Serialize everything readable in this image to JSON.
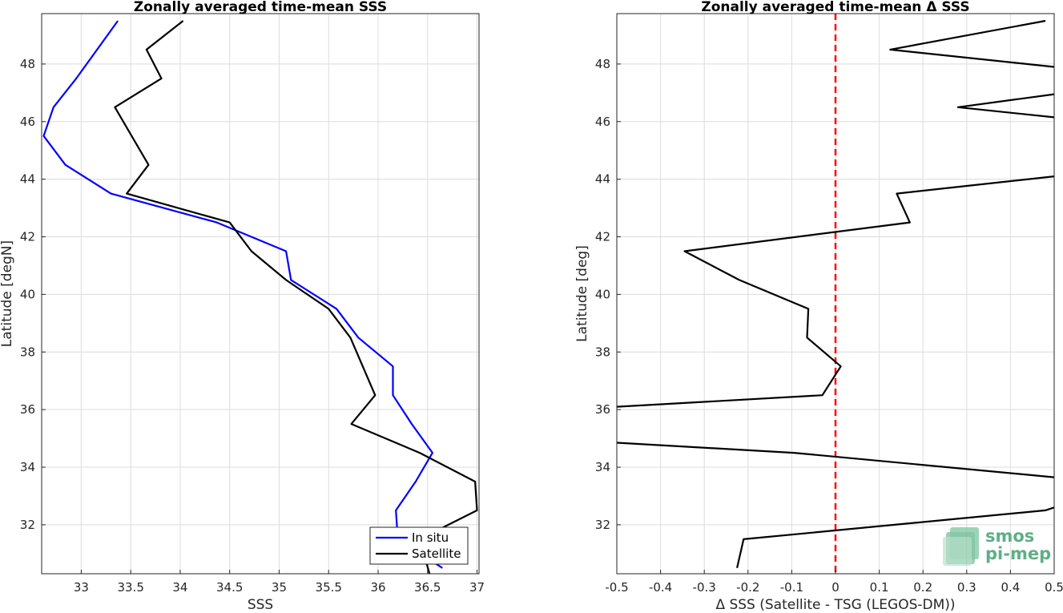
{
  "chart_data": [
    {
      "type": "line",
      "title": "Zonally averaged time-mean SSS",
      "xlabel": "SSS",
      "ylabel": "Latitude [degN]",
      "xlim": [
        32.6,
        37.02
      ],
      "ylim": [
        30.3,
        49.75
      ],
      "xticks": [
        33,
        33.5,
        34,
        34.5,
        35,
        35.5,
        36,
        36.5,
        37
      ],
      "xtick_labels": [
        "33",
        "33.5",
        "34",
        "34.5",
        "35",
        "35.5",
        "36",
        "36.5",
        "37"
      ],
      "yticks": [
        32,
        34,
        36,
        38,
        40,
        42,
        44,
        46,
        48
      ],
      "ytick_labels": [
        "32",
        "34",
        "36",
        "38",
        "40",
        "42",
        "44",
        "46",
        "48"
      ],
      "grid": true,
      "legend_position": "bottom-right",
      "series": [
        {
          "name": "In situ",
          "color": "#0000ff",
          "x": [
            36.65,
            36.2,
            36.18,
            36.38,
            36.55,
            36.34,
            36.15,
            36.15,
            35.8,
            35.58,
            35.12,
            35.07,
            34.37,
            33.3,
            32.84,
            32.62,
            32.72,
            32.95,
            33.37
          ],
          "y": [
            30.5,
            31.5,
            32.5,
            33.5,
            34.5,
            35.5,
            36.5,
            37.5,
            38.5,
            39.5,
            40.5,
            41.5,
            42.5,
            43.5,
            44.5,
            45.5,
            46.5,
            47.5,
            49.5
          ]
        },
        {
          "name": "Satellite",
          "color": "#000000",
          "x": [
            36.52,
            36.42,
            37.0,
            36.98,
            36.42,
            35.73,
            35.97,
            35.72,
            35.5,
            35.07,
            34.72,
            34.5,
            33.46,
            33.68,
            33.34,
            33.81,
            33.66,
            34.03
          ],
          "y": [
            30.3,
            31.5,
            32.5,
            33.5,
            34.5,
            35.5,
            36.5,
            38.5,
            39.5,
            40.5,
            41.5,
            42.5,
            43.5,
            44.5,
            46.5,
            47.5,
            48.5,
            49.5
          ]
        }
      ]
    },
    {
      "type": "line",
      "title": "Zonally averaged time-mean Δ SSS",
      "xlabel": "Δ SSS (Satellite - TSG (LEGOS-DM))",
      "ylabel": "Latitude [deg]",
      "xlim": [
        -0.5,
        0.5
      ],
      "ylim": [
        30.3,
        49.75
      ],
      "xticks": [
        -0.5,
        -0.4,
        -0.3,
        -0.2,
        -0.1,
        0,
        0.1,
        0.2,
        0.3,
        0.4,
        0.5
      ],
      "xtick_labels": [
        "-0.5",
        "-0.4",
        "-0.3",
        "-0.2",
        "-0.1",
        "0",
        "0.1",
        "0.2",
        "0.3",
        "0.4",
        "0.5"
      ],
      "yticks": [
        32,
        34,
        36,
        38,
        40,
        42,
        44,
        46,
        48
      ],
      "ytick_labels": [
        "32",
        "34",
        "36",
        "38",
        "40",
        "42",
        "44",
        "46",
        "48"
      ],
      "grid": true,
      "reference_line": {
        "x": 0,
        "color": "#ff0000",
        "style": "dashed"
      },
      "series": [
        {
          "name": "",
          "color": "#000000",
          "segments": [
            {
              "x": [
                -0.225,
                -0.21,
                0.48,
                0.5
              ],
              "y": [
                30.5,
                31.5,
                32.5,
                32.6
              ]
            },
            {
              "x": [
                0.5,
                -0.095,
                -0.5
              ],
              "y": [
                33.65,
                34.5,
                34.85
              ]
            },
            {
              "x": [
                -0.5,
                -0.03,
                0.012,
                -0.065,
                -0.062,
                -0.22,
                -0.345,
                0.17,
                0.14,
                0.5
              ],
              "y": [
                36.1,
                36.5,
                37.5,
                38.5,
                39.5,
                40.5,
                41.5,
                42.5,
                43.5,
                44.1
              ]
            },
            {
              "x": [
                0.5,
                0.28,
                0.5
              ],
              "y": [
                46.15,
                46.5,
                46.95
              ]
            },
            {
              "x": [
                0.5,
                0.125,
                0.48
              ],
              "y": [
                47.9,
                48.5,
                49.5
              ]
            }
          ]
        }
      ]
    }
  ],
  "logo": {
    "line1": "smos",
    "line2": "pi-mep",
    "color": "#5daf86"
  }
}
